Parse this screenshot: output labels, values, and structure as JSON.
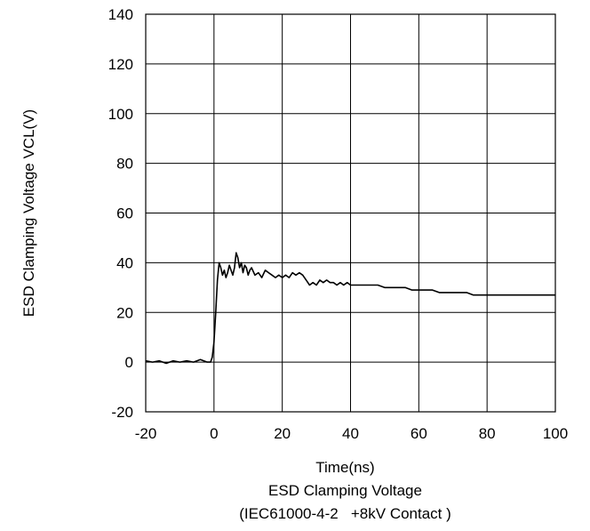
{
  "chart_data": {
    "type": "line",
    "title": "ESD Clamping Voltage",
    "subtitle": "(IEC61000-4-2   +8kV Contact )",
    "xlabel": "Time(ns)",
    "ylabel": "ESD Clamping Voltage VCL(V)",
    "xlim": [
      -20,
      100
    ],
    "ylim": [
      -20,
      140
    ],
    "xticks": [
      -20,
      0,
      20,
      40,
      60,
      80,
      100
    ],
    "yticks": [
      -20,
      0,
      20,
      40,
      60,
      80,
      100,
      120,
      140
    ],
    "grid": true,
    "legend": "none",
    "series": [
      {
        "x": [
          -20,
          -18,
          -16,
          -14,
          -12,
          -10,
          -8,
          -6,
          -4,
          -2,
          -1,
          -0.5,
          0,
          0.5,
          1,
          1.5,
          2,
          2.5,
          3,
          3.5,
          4,
          4.5,
          5,
          5.5,
          6,
          6.5,
          7,
          7.5,
          8,
          8.5,
          9,
          9.5,
          10,
          10.5,
          11,
          12,
          13,
          14,
          15,
          16,
          17,
          18,
          19,
          20,
          21,
          22,
          23,
          24,
          25,
          26,
          27,
          28,
          29,
          30,
          31,
          32,
          33,
          34,
          35,
          36,
          37,
          38,
          39,
          40,
          42,
          44,
          46,
          48,
          50,
          52,
          54,
          56,
          58,
          60,
          62,
          64,
          66,
          68,
          70,
          72,
          74,
          76,
          78,
          80,
          82,
          84,
          86,
          88,
          90,
          92,
          94,
          96,
          98,
          100
        ],
        "y": [
          0.5,
          0,
          0.5,
          -0.5,
          0.5,
          0,
          0.5,
          0,
          1,
          0,
          0,
          2,
          8,
          20,
          33,
          40,
          38,
          35,
          37,
          34,
          36,
          39,
          37,
          35,
          38,
          44,
          42,
          38,
          40,
          36,
          39,
          38,
          35,
          37,
          38,
          35,
          36,
          34,
          37,
          36,
          35,
          34,
          35,
          34,
          35,
          34,
          36,
          35,
          36,
          35,
          33,
          31,
          32,
          31,
          33,
          32,
          33,
          32,
          32,
          31,
          32,
          31,
          32,
          31,
          31,
          31,
          31,
          31,
          30,
          30,
          30,
          30,
          29,
          29,
          29,
          29,
          28,
          28,
          28,
          28,
          28,
          27,
          27,
          27,
          27,
          27,
          27,
          27,
          27,
          27,
          27,
          27,
          27,
          27
        ]
      }
    ]
  }
}
